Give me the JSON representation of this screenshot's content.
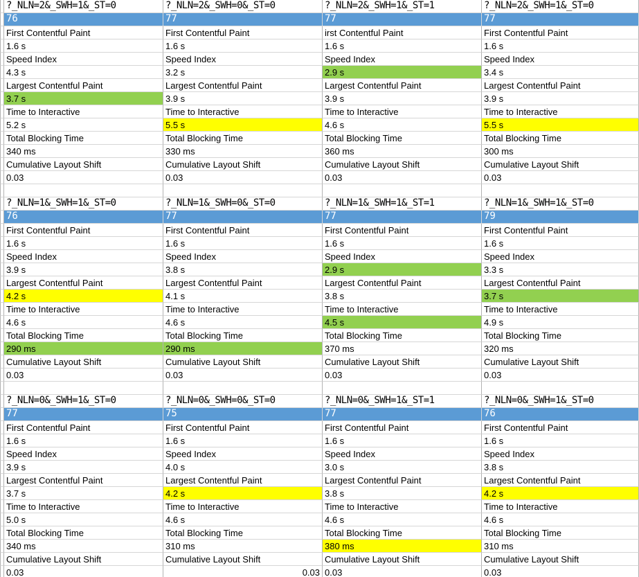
{
  "colors": {
    "score_row_bg": "#5b9bd5",
    "score_row_text": "#ffffff",
    "highlight_green": "#92d050",
    "highlight_yellow": "#ffff00",
    "grid_vertical_line": "#b2b2b2",
    "grid_horizontal_line": "#d6d6d6"
  },
  "groups": [
    {
      "columns": [
        {
          "query": "?_NLN=2&_SWH=1&_ST=0",
          "score": "76",
          "rows": [
            {
              "label": "First Contentful Paint",
              "value": "1.6 s"
            },
            {
              "label": "Speed Index",
              "value": "4.3 s"
            },
            {
              "label": "Largest Contentful Paint",
              "value": "3.7 s",
              "highlight": "green"
            },
            {
              "label": "Time to Interactive",
              "value": "5.2 s"
            },
            {
              "label": "Total Blocking Time",
              "value": "340 ms"
            },
            {
              "label": "Cumulative Layout Shift",
              "value": "0.03"
            }
          ]
        },
        {
          "query": "?_NLN=2&_SWH=0&_ST=0",
          "score": "77",
          "rows": [
            {
              "label": "First Contentful Paint",
              "value": "1.6 s"
            },
            {
              "label": "Speed Index",
              "value": "3.2 s"
            },
            {
              "label": "Largest Contentful Paint",
              "value": "3.9 s"
            },
            {
              "label": "Time to Interactive",
              "value": "5.5 s",
              "highlight": "yellow"
            },
            {
              "label": "Total Blocking Time",
              "value": "330 ms"
            },
            {
              "label": "Cumulative Layout Shift",
              "value": "0.03"
            }
          ]
        },
        {
          "query": "?_NLN=2&_SWH=1&_ST=1",
          "score": "77",
          "rows": [
            {
              "label": "irst Contentful Paint",
              "value": "1.6 s"
            },
            {
              "label": "Speed Index",
              "value": "2.9 s",
              "highlight": "green"
            },
            {
              "label": "Largest Contentful Paint",
              "value": "3.9 s"
            },
            {
              "label": "Time to Interactive",
              "value": "4.6 s"
            },
            {
              "label": "Total Blocking Time",
              "value": "360 ms"
            },
            {
              "label": "Cumulative Layout Shift",
              "value": "0.03"
            }
          ]
        },
        {
          "query": "?_NLN=2&_SWH=1&_ST=0",
          "score": "77",
          "rows": [
            {
              "label": "First Contentful Paint",
              "value": "1.6 s"
            },
            {
              "label": "Speed Index",
              "value": "3.4 s"
            },
            {
              "label": "Largest Contentful Paint",
              "value": "3.9 s"
            },
            {
              "label": "Time to Interactive",
              "value": "5.5 s",
              "highlight": "yellow"
            },
            {
              "label": "Total Blocking Time",
              "value": "300 ms"
            },
            {
              "label": "Cumulative Layout Shift",
              "value": "0.03"
            }
          ]
        }
      ]
    },
    {
      "columns": [
        {
          "query": "?_NLN=1&_SWH=1&_ST=0",
          "score": "76",
          "rows": [
            {
              "label": "First Contentful Paint",
              "value": "1.6 s"
            },
            {
              "label": "Speed Index",
              "value": "3.9 s"
            },
            {
              "label": "Largest Contentful Paint",
              "value": "4.2 s",
              "highlight": "yellow"
            },
            {
              "label": "Time to Interactive",
              "value": "4.6 s"
            },
            {
              "label": "Total Blocking Time",
              "value": "290 ms",
              "highlight": "green"
            },
            {
              "label": "Cumulative Layout Shift",
              "value": "0.03"
            }
          ]
        },
        {
          "query": "?_NLN=1&_SWH=0&_ST=0",
          "score": "77",
          "rows": [
            {
              "label": "First Contentful Paint",
              "value": "1.6 s"
            },
            {
              "label": "Speed Index",
              "value": "3.8 s"
            },
            {
              "label": "Largest Contentful Paint",
              "value": "4.1 s"
            },
            {
              "label": "Time to Interactive",
              "value": "4.6 s"
            },
            {
              "label": "Total Blocking Time",
              "value": "290 ms",
              "highlight": "green"
            },
            {
              "label": "Cumulative Layout Shift",
              "value": "0.03"
            }
          ]
        },
        {
          "query": "?_NLN=1&_SWH=1&_ST=1",
          "score": "77",
          "rows": [
            {
              "label": "First Contentful Paint",
              "value": "1.6 s"
            },
            {
              "label": "Speed Index",
              "value": "2.9 s",
              "highlight": "green"
            },
            {
              "label": "Largest Contentful Paint",
              "value": "3.8 s"
            },
            {
              "label": "Time to Interactive",
              "value": "4.5 s",
              "highlight": "green"
            },
            {
              "label": "Total Blocking Time",
              "value": "370 ms"
            },
            {
              "label": "Cumulative Layout Shift",
              "value": "0.03"
            }
          ]
        },
        {
          "query": "?_NLN=1&_SWH=1&_ST=0",
          "score": "79",
          "rows": [
            {
              "label": "First Contentful Paint",
              "value": "1.6 s"
            },
            {
              "label": "Speed Index",
              "value": "3.3 s"
            },
            {
              "label": "Largest Contentful Paint",
              "value": "3.7 s",
              "highlight": "green"
            },
            {
              "label": "Time to Interactive",
              "value": "4.9 s"
            },
            {
              "label": "Total Blocking Time",
              "value": "320 ms"
            },
            {
              "label": "Cumulative Layout Shift",
              "value": "0.03"
            }
          ]
        }
      ]
    },
    {
      "columns": [
        {
          "query": "?_NLN=0&_SWH=1&_ST=0",
          "score": "77",
          "rows": [
            {
              "label": "First Contentful Paint",
              "value": "1.6 s"
            },
            {
              "label": "Speed Index",
              "value": "3.9 s"
            },
            {
              "label": "Largest Contentful Paint",
              "value": "3.7 s"
            },
            {
              "label": "Time to Interactive",
              "value": "5.0 s"
            },
            {
              "label": "Total Blocking Time",
              "value": "340 ms"
            },
            {
              "label": "Cumulative Layout Shift",
              "value": "0.03"
            }
          ]
        },
        {
          "query": "?_NLN=0&_SWH=0&_ST=0",
          "score": "75",
          "rows": [
            {
              "label": "First Contentful Paint",
              "value": "1.6 s"
            },
            {
              "label": "Speed Index",
              "value": "4.0 s"
            },
            {
              "label": "Largest Contentful Paint",
              "value": "4.2 s",
              "highlight": "yellow"
            },
            {
              "label": "Time to Interactive",
              "value": "4.6 s"
            },
            {
              "label": "Total Blocking Time",
              "value": "310 ms"
            },
            {
              "label": "Cumulative Layout Shift",
              "value": "0.03",
              "align": "right"
            }
          ]
        },
        {
          "query": "?_NLN=0&_SWH=1&_ST=1",
          "score": "77",
          "rows": [
            {
              "label": "First Contentful Paint",
              "value": "1.6 s"
            },
            {
              "label": "Speed Index",
              "value": "3.0 s"
            },
            {
              "label": "Largest Contentful Paint",
              "value": "3.8 s"
            },
            {
              "label": "Time to Interactive",
              "value": "4.6 s"
            },
            {
              "label": "Total Blocking Time",
              "value": "380 ms",
              "highlight": "yellow"
            },
            {
              "label": "Cumulative Layout Shift",
              "value": "0.03"
            }
          ]
        },
        {
          "query": "?_NLN=0&_SWH=1&_ST=0",
          "score": "76",
          "rows": [
            {
              "label": "First Contentful Paint",
              "value": "1.6 s"
            },
            {
              "label": "Speed Index",
              "value": "3.8 s"
            },
            {
              "label": "Largest Contentful Paint",
              "value": "4.2 s",
              "highlight": "yellow"
            },
            {
              "label": "Time to Interactive",
              "value": "4.6 s"
            },
            {
              "label": "Total Blocking Time",
              "value": "310 ms"
            },
            {
              "label": "Cumulative Layout Shift",
              "value": "0.03"
            }
          ]
        }
      ]
    }
  ]
}
